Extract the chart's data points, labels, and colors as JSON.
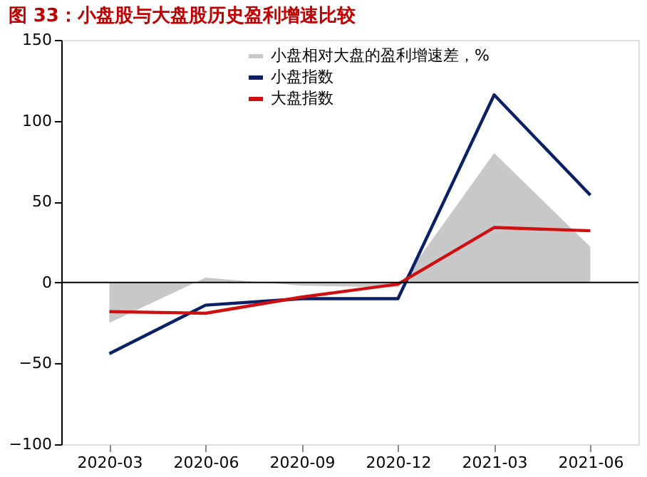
{
  "chart_data": {
    "type": "line",
    "title": "图 33：小盘股与大盘股历史盈利增速比较",
    "categories": [
      "2020-03",
      "2020-06",
      "2020-09",
      "2020-12",
      "2021-03",
      "2021-06"
    ],
    "series": [
      {
        "name": "小盘相对大盘的盈利增速差，%",
        "type": "area",
        "color": "#c8c8c8",
        "values": [
          -25,
          3,
          -2,
          -3,
          80,
          22
        ]
      },
      {
        "name": "小盘指数",
        "color": "#0c2066",
        "values": [
          -44,
          -14,
          -10,
          -10,
          116,
          54
        ]
      },
      {
        "name": "大盘指数",
        "color": "#d01010",
        "values": [
          -18,
          -19,
          -9,
          -1,
          34,
          32
        ]
      }
    ],
    "ylim": [
      -100,
      150
    ],
    "yticks": [
      -100,
      -50,
      0,
      50,
      100,
      150
    ],
    "ref_lines": [
      {
        "axis": "y",
        "value": 0,
        "color": "#000000"
      }
    ],
    "grid": false,
    "legend": "top",
    "marker": "none"
  }
}
